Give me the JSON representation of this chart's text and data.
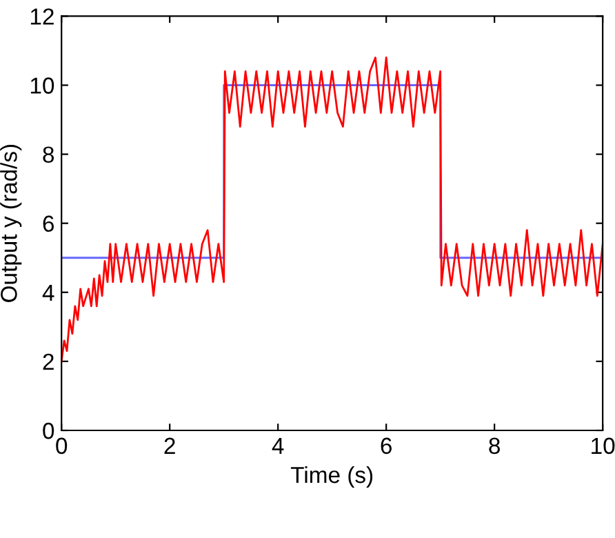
{
  "chart_data": {
    "type": "line",
    "xlabel": "Time (s)",
    "ylabel": "Output y (rad/s)",
    "xlim": [
      0,
      10
    ],
    "ylim": [
      0,
      12
    ],
    "xticks": [
      0,
      2,
      4,
      6,
      8,
      10
    ],
    "yticks": [
      0,
      2,
      4,
      6,
      8,
      10,
      12
    ],
    "grid": false,
    "line_style": "solid",
    "marker": "none",
    "series": [
      {
        "color": "#6666ff",
        "x": [
          0,
          3,
          3,
          7,
          7,
          10
        ],
        "values": [
          5,
          5,
          10,
          10,
          5,
          5
        ]
      },
      {
        "color": "#ff0000",
        "x": [
          0,
          0.05,
          0.1,
          0.15,
          0.2,
          0.25,
          0.3,
          0.35,
          0.4,
          0.5,
          0.55,
          0.6,
          0.65,
          0.7,
          0.75,
          0.8,
          0.85,
          0.9,
          0.95,
          1.0,
          1.1,
          1.2,
          1.3,
          1.4,
          1.5,
          1.6,
          1.7,
          1.8,
          1.9,
          2.0,
          2.1,
          2.2,
          2.3,
          2.4,
          2.5,
          2.6,
          2.7,
          2.8,
          2.9,
          3.0,
          3.02,
          3.1,
          3.2,
          3.3,
          3.4,
          3.5,
          3.6,
          3.7,
          3.8,
          3.9,
          4.0,
          4.1,
          4.2,
          4.3,
          4.4,
          4.5,
          4.6,
          4.7,
          4.8,
          4.9,
          5.0,
          5.1,
          5.2,
          5.3,
          5.4,
          5.5,
          5.6,
          5.7,
          5.8,
          5.9,
          6.0,
          6.1,
          6.2,
          6.3,
          6.4,
          6.5,
          6.6,
          6.7,
          6.8,
          6.9,
          7.0,
          7.02,
          7.1,
          7.2,
          7.3,
          7.4,
          7.5,
          7.6,
          7.7,
          7.8,
          7.9,
          8.0,
          8.1,
          8.2,
          8.3,
          8.4,
          8.5,
          8.6,
          8.7,
          8.8,
          8.9,
          9.0,
          9.1,
          9.2,
          9.3,
          9.4,
          9.5,
          9.6,
          9.7,
          9.8,
          9.9,
          10.0
        ],
        "values": [
          2.0,
          2.6,
          2.3,
          3.2,
          2.8,
          3.6,
          3.2,
          4.1,
          3.6,
          4.1,
          3.6,
          4.4,
          3.6,
          4.5,
          3.9,
          4.9,
          4.3,
          5.4,
          4.3,
          5.4,
          4.3,
          5.4,
          4.3,
          5.4,
          4.3,
          5.4,
          3.9,
          5.4,
          4.3,
          5.4,
          4.3,
          5.4,
          4.3,
          5.4,
          4.3,
          5.4,
          5.8,
          4.3,
          5.4,
          4.3,
          10.4,
          9.2,
          10.4,
          8.8,
          10.4,
          9.2,
          10.4,
          9.2,
          10.4,
          8.8,
          10.4,
          9.2,
          10.4,
          9.2,
          10.4,
          8.8,
          10.4,
          9.2,
          10.4,
          9.2,
          10.4,
          9.2,
          8.8,
          10.4,
          9.2,
          10.4,
          9.2,
          10.4,
          10.8,
          9.2,
          10.8,
          9.2,
          10.4,
          9.2,
          10.4,
          8.8,
          10.4,
          9.2,
          10.4,
          9.2,
          10.4,
          4.2,
          5.4,
          4.2,
          5.4,
          4.2,
          3.9,
          5.4,
          3.9,
          5.4,
          4.2,
          5.4,
          4.2,
          5.4,
          3.9,
          5.4,
          4.2,
          5.8,
          4.2,
          5.4,
          3.9,
          5.4,
          4.2,
          5.4,
          4.2,
          5.4,
          4.2,
          5.8,
          4.2,
          5.4,
          3.9,
          5.4
        ]
      }
    ]
  }
}
